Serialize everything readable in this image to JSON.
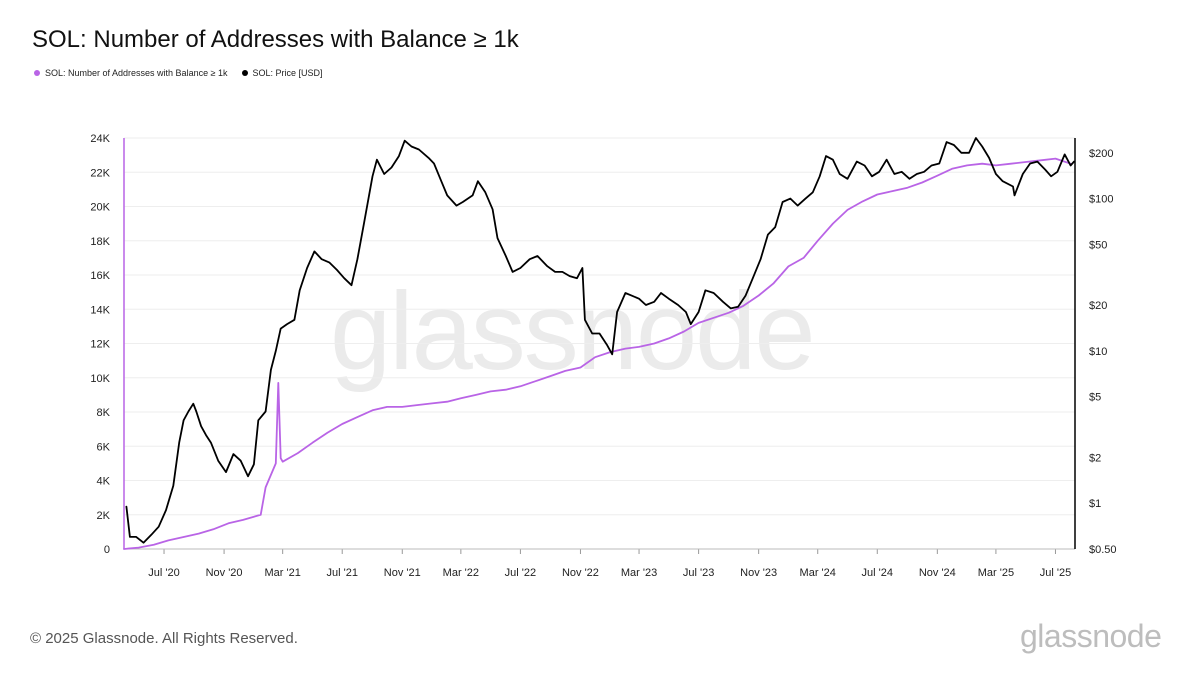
{
  "title": "SOL: Number of Addresses with Balance ≥ 1k",
  "legend": [
    {
      "label": "SOL: Number of Addresses with Balance ≥ 1k",
      "color": "#b964e6"
    },
    {
      "label": "SOL: Price [USD]",
      "color": "#000000"
    }
  ],
  "footer": "© 2025 Glassnode. All Rights Reserved.",
  "watermark": "glassnode",
  "logo": "glassnode",
  "chart_data": {
    "type": "line",
    "grid": true,
    "legend_position": "top-left",
    "x_ticks": [
      "Jul '20",
      "Nov '20",
      "Mar '21",
      "Jul '21",
      "Nov '21",
      "Mar '22",
      "Jul '22",
      "Nov '22",
      "Mar '23",
      "Jul '23",
      "Nov '23",
      "Mar '24",
      "Jul '24",
      "Nov '24",
      "Mar '25",
      "Jul '25"
    ],
    "x_tick_dates": [
      "2020-07-01",
      "2020-11-01",
      "2021-03-01",
      "2021-07-01",
      "2021-11-01",
      "2022-03-01",
      "2022-07-01",
      "2022-11-01",
      "2023-03-01",
      "2023-07-01",
      "2023-11-01",
      "2024-03-01",
      "2024-07-01",
      "2024-11-01",
      "2025-03-01",
      "2025-07-01"
    ],
    "xlim": [
      "2020-04-10",
      "2025-08-10"
    ],
    "y_left": {
      "ticks": [
        0,
        2000,
        4000,
        6000,
        8000,
        10000,
        12000,
        14000,
        16000,
        18000,
        20000,
        22000,
        24000
      ],
      "tick_labels": [
        "0",
        "2K",
        "4K",
        "6K",
        "8K",
        "10K",
        "12K",
        "14K",
        "16K",
        "18K",
        "20K",
        "22K",
        "24K"
      ],
      "ylim": [
        0,
        24000
      ]
    },
    "y_right": {
      "scale": "log",
      "ticks": [
        0.5,
        1,
        2,
        5,
        10,
        20,
        50,
        100,
        200
      ],
      "tick_labels": [
        "$0.50",
        "$1",
        "$2",
        "$5",
        "$10",
        "$20",
        "$50",
        "$100",
        "$200"
      ],
      "ylim": [
        0.5,
        250
      ]
    },
    "series": [
      {
        "name": "SOL: Number of Addresses with Balance ≥ 1k",
        "axis": "left",
        "color": "#b964e6",
        "points": [
          [
            "2020-04-10",
            0
          ],
          [
            "2020-05-10",
            80
          ],
          [
            "2020-06-10",
            250
          ],
          [
            "2020-07-10",
            500
          ],
          [
            "2020-08-10",
            700
          ],
          [
            "2020-09-10",
            900
          ],
          [
            "2020-10-10",
            1150
          ],
          [
            "2020-11-10",
            1500
          ],
          [
            "2020-12-10",
            1700
          ],
          [
            "2021-01-15",
            2000
          ],
          [
            "2021-01-25",
            3600
          ],
          [
            "2021-02-15",
            5000
          ],
          [
            "2021-02-20",
            9700
          ],
          [
            "2021-02-25",
            5300
          ],
          [
            "2021-03-01",
            5100
          ],
          [
            "2021-04-01",
            5600
          ],
          [
            "2021-05-01",
            6200
          ],
          [
            "2021-06-01",
            6800
          ],
          [
            "2021-07-01",
            7300
          ],
          [
            "2021-08-01",
            7700
          ],
          [
            "2021-09-01",
            8100
          ],
          [
            "2021-10-01",
            8300
          ],
          [
            "2021-11-01",
            8300
          ],
          [
            "2021-12-01",
            8400
          ],
          [
            "2022-01-01",
            8500
          ],
          [
            "2022-02-01",
            8600
          ],
          [
            "2022-03-01",
            8800
          ],
          [
            "2022-04-01",
            9000
          ],
          [
            "2022-05-01",
            9200
          ],
          [
            "2022-06-01",
            9300
          ],
          [
            "2022-07-01",
            9500
          ],
          [
            "2022-08-01",
            9800
          ],
          [
            "2022-09-01",
            10100
          ],
          [
            "2022-10-01",
            10400
          ],
          [
            "2022-11-01",
            10600
          ],
          [
            "2022-12-01",
            11200
          ],
          [
            "2023-01-01",
            11500
          ],
          [
            "2023-02-01",
            11700
          ],
          [
            "2023-03-01",
            11800
          ],
          [
            "2023-04-01",
            12000
          ],
          [
            "2023-05-01",
            12300
          ],
          [
            "2023-06-01",
            12700
          ],
          [
            "2023-07-01",
            13200
          ],
          [
            "2023-08-01",
            13500
          ],
          [
            "2023-09-01",
            13800
          ],
          [
            "2023-10-01",
            14200
          ],
          [
            "2023-11-01",
            14800
          ],
          [
            "2023-12-01",
            15500
          ],
          [
            "2024-01-01",
            16500
          ],
          [
            "2024-02-01",
            17000
          ],
          [
            "2024-03-01",
            18000
          ],
          [
            "2024-04-01",
            19000
          ],
          [
            "2024-05-01",
            19800
          ],
          [
            "2024-06-01",
            20300
          ],
          [
            "2024-07-01",
            20700
          ],
          [
            "2024-08-01",
            20900
          ],
          [
            "2024-09-01",
            21100
          ],
          [
            "2024-10-01",
            21400
          ],
          [
            "2024-11-01",
            21800
          ],
          [
            "2024-12-01",
            22200
          ],
          [
            "2025-01-01",
            22400
          ],
          [
            "2025-02-01",
            22500
          ],
          [
            "2025-03-01",
            22400
          ],
          [
            "2025-04-01",
            22500
          ],
          [
            "2025-05-01",
            22600
          ],
          [
            "2025-06-01",
            22700
          ],
          [
            "2025-07-01",
            22800
          ],
          [
            "2025-08-01",
            22500
          ]
        ]
      },
      {
        "name": "SOL: Price [USD]",
        "axis": "right",
        "color": "#000000",
        "points": [
          [
            "2020-04-15",
            0.95
          ],
          [
            "2020-04-22",
            0.6
          ],
          [
            "2020-05-05",
            0.6
          ],
          [
            "2020-05-20",
            0.55
          ],
          [
            "2020-06-05",
            0.62
          ],
          [
            "2020-06-20",
            0.7
          ],
          [
            "2020-07-05",
            0.9
          ],
          [
            "2020-07-20",
            1.3
          ],
          [
            "2020-08-01",
            2.5
          ],
          [
            "2020-08-10",
            3.5
          ],
          [
            "2020-08-20",
            4.0
          ],
          [
            "2020-08-30",
            4.5
          ],
          [
            "2020-09-05",
            4.0
          ],
          [
            "2020-09-15",
            3.2
          ],
          [
            "2020-09-25",
            2.8
          ],
          [
            "2020-10-05",
            2.5
          ],
          [
            "2020-10-20",
            1.9
          ],
          [
            "2020-11-05",
            1.6
          ],
          [
            "2020-11-20",
            2.1
          ],
          [
            "2020-12-05",
            1.9
          ],
          [
            "2020-12-20",
            1.5
          ],
          [
            "2021-01-01",
            1.8
          ],
          [
            "2021-01-10",
            3.5
          ],
          [
            "2021-01-25",
            4.0
          ],
          [
            "2021-02-05",
            7.5
          ],
          [
            "2021-02-15",
            10.0
          ],
          [
            "2021-02-25",
            14.0
          ],
          [
            "2021-03-10",
            15.0
          ],
          [
            "2021-03-25",
            16.0
          ],
          [
            "2021-04-05",
            25.0
          ],
          [
            "2021-04-20",
            35.0
          ],
          [
            "2021-05-05",
            45.0
          ],
          [
            "2021-05-20",
            40.0
          ],
          [
            "2021-06-05",
            38.0
          ],
          [
            "2021-06-20",
            34.0
          ],
          [
            "2021-07-05",
            30.0
          ],
          [
            "2021-07-20",
            27.0
          ],
          [
            "2021-08-01",
            40.0
          ],
          [
            "2021-08-15",
            70.0
          ],
          [
            "2021-09-01",
            140.0
          ],
          [
            "2021-09-10",
            180.0
          ],
          [
            "2021-09-25",
            145.0
          ],
          [
            "2021-10-10",
            160.0
          ],
          [
            "2021-10-25",
            190.0
          ],
          [
            "2021-11-06",
            240.0
          ],
          [
            "2021-11-20",
            220.0
          ],
          [
            "2021-12-05",
            210.0
          ],
          [
            "2021-12-25",
            185.0
          ],
          [
            "2022-01-05",
            170.0
          ],
          [
            "2022-01-20",
            130.0
          ],
          [
            "2022-02-01",
            105.0
          ],
          [
            "2022-02-20",
            90.0
          ],
          [
            "2022-03-05",
            95.0
          ],
          [
            "2022-03-25",
            105.0
          ],
          [
            "2022-04-05",
            130.0
          ],
          [
            "2022-04-20",
            110.0
          ],
          [
            "2022-05-05",
            85.0
          ],
          [
            "2022-05-15",
            55.0
          ],
          [
            "2022-06-01",
            42.0
          ],
          [
            "2022-06-15",
            33.0
          ],
          [
            "2022-07-01",
            35.0
          ],
          [
            "2022-07-20",
            40.0
          ],
          [
            "2022-08-05",
            42.0
          ],
          [
            "2022-08-25",
            36.0
          ],
          [
            "2022-09-10",
            33.0
          ],
          [
            "2022-09-25",
            33.0
          ],
          [
            "2022-10-10",
            31.0
          ],
          [
            "2022-10-25",
            30.0
          ],
          [
            "2022-11-05",
            35.0
          ],
          [
            "2022-11-10",
            16.0
          ],
          [
            "2022-11-25",
            13.0
          ],
          [
            "2022-12-10",
            13.0
          ],
          [
            "2022-12-25",
            11.0
          ],
          [
            "2023-01-05",
            9.5
          ],
          [
            "2023-01-15",
            18.0
          ],
          [
            "2023-02-01",
            24.0
          ],
          [
            "2023-02-15",
            23.0
          ],
          [
            "2023-03-01",
            22.0
          ],
          [
            "2023-03-15",
            20.0
          ],
          [
            "2023-04-01",
            21.0
          ],
          [
            "2023-04-15",
            24.0
          ],
          [
            "2023-05-01",
            22.0
          ],
          [
            "2023-05-20",
            20.0
          ],
          [
            "2023-06-05",
            18.0
          ],
          [
            "2023-06-15",
            15.0
          ],
          [
            "2023-07-01",
            18.0
          ],
          [
            "2023-07-15",
            25.0
          ],
          [
            "2023-08-01",
            24.0
          ],
          [
            "2023-08-20",
            21.0
          ],
          [
            "2023-09-05",
            19.0
          ],
          [
            "2023-09-20",
            19.5
          ],
          [
            "2023-10-05",
            23.0
          ],
          [
            "2023-10-20",
            30.0
          ],
          [
            "2023-11-05",
            40.0
          ],
          [
            "2023-11-20",
            58.0
          ],
          [
            "2023-12-05",
            65.0
          ],
          [
            "2023-12-20",
            95.0
          ],
          [
            "2024-01-05",
            100.0
          ],
          [
            "2024-01-20",
            90.0
          ],
          [
            "2024-02-05",
            100.0
          ],
          [
            "2024-02-20",
            110.0
          ],
          [
            "2024-03-05",
            140.0
          ],
          [
            "2024-03-18",
            190.0
          ],
          [
            "2024-04-01",
            180.0
          ],
          [
            "2024-04-15",
            145.0
          ],
          [
            "2024-05-01",
            135.0
          ],
          [
            "2024-05-20",
            175.0
          ],
          [
            "2024-06-05",
            165.0
          ],
          [
            "2024-06-20",
            140.0
          ],
          [
            "2024-07-05",
            150.0
          ],
          [
            "2024-07-20",
            180.0
          ],
          [
            "2024-08-05",
            145.0
          ],
          [
            "2024-08-20",
            150.0
          ],
          [
            "2024-09-05",
            135.0
          ],
          [
            "2024-09-20",
            145.0
          ],
          [
            "2024-10-05",
            150.0
          ],
          [
            "2024-10-20",
            165.0
          ],
          [
            "2024-11-05",
            170.0
          ],
          [
            "2024-11-20",
            235.0
          ],
          [
            "2024-12-05",
            225.0
          ],
          [
            "2024-12-20",
            200.0
          ],
          [
            "2025-01-05",
            200.0
          ],
          [
            "2025-01-19",
            250.0
          ],
          [
            "2025-02-01",
            220.0
          ],
          [
            "2025-02-15",
            185.0
          ],
          [
            "2025-03-01",
            145.0
          ],
          [
            "2025-03-15",
            130.0
          ],
          [
            "2025-04-05",
            120.0
          ],
          [
            "2025-04-08",
            105.0
          ],
          [
            "2025-04-25",
            145.0
          ],
          [
            "2025-05-10",
            170.0
          ],
          [
            "2025-05-25",
            175.0
          ],
          [
            "2025-06-10",
            155.0
          ],
          [
            "2025-06-22",
            140.0
          ],
          [
            "2025-07-05",
            150.0
          ],
          [
            "2025-07-20",
            195.0
          ],
          [
            "2025-08-01",
            165.0
          ],
          [
            "2025-08-08",
            175.0
          ]
        ]
      }
    ]
  }
}
